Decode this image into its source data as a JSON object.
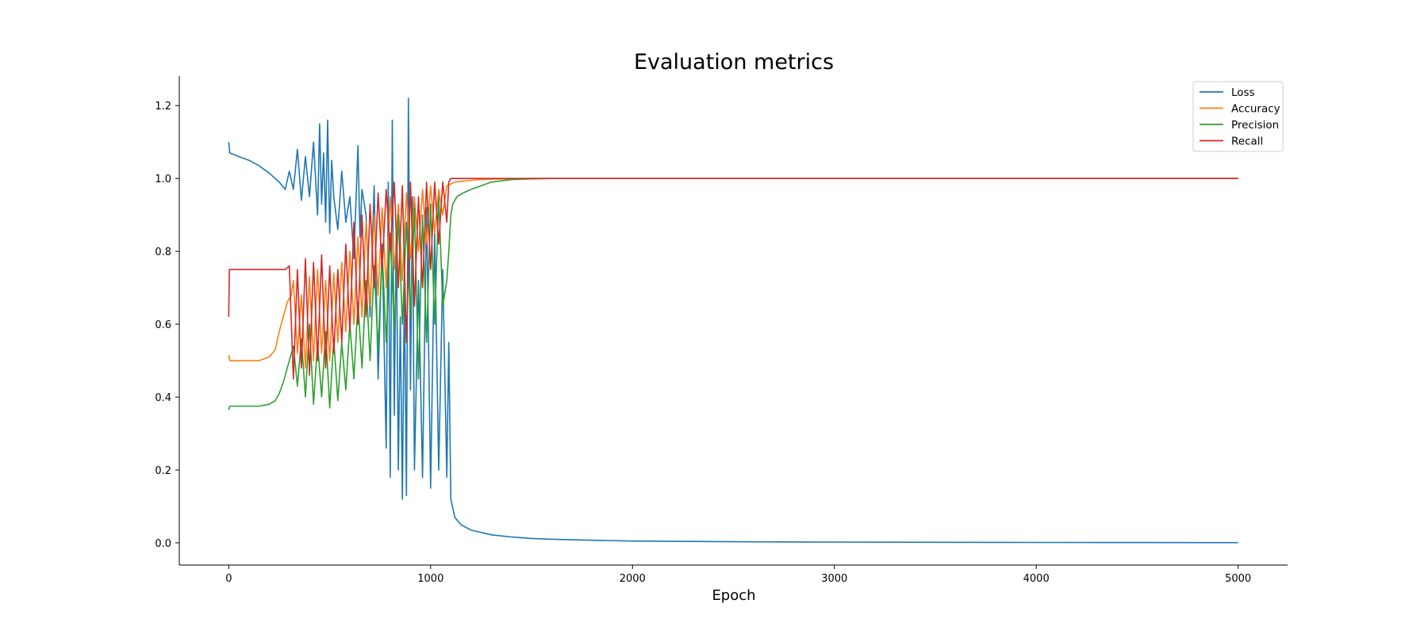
{
  "chart_data": {
    "type": "line",
    "title": "Evaluation metrics",
    "xlabel": "Epoch",
    "ylabel": "",
    "xlim": [
      -245,
      5245
    ],
    "ylim": [
      -0.061,
      1.281
    ],
    "xticks": [
      0,
      1000,
      2000,
      3000,
      4000,
      5000
    ],
    "xtick_labels": [
      "0",
      "1000",
      "2000",
      "3000",
      "4000",
      "5000"
    ],
    "yticks": [
      0.0,
      0.2,
      0.4,
      0.6,
      0.8,
      1.0,
      1.2
    ],
    "ytick_labels": [
      "0.0",
      "0.2",
      "0.4",
      "0.6",
      "0.8",
      "1.0",
      "1.2"
    ],
    "grid": false,
    "legend_position": "top-right",
    "series": [
      {
        "name": "Loss",
        "color": "#1f77b4",
        "x": [
          0,
          5,
          50,
          100,
          150,
          200,
          250,
          280,
          300,
          320,
          340,
          360,
          380,
          400,
          420,
          440,
          450,
          460,
          470,
          480,
          490,
          500,
          510,
          520,
          540,
          560,
          580,
          600,
          620,
          640,
          650,
          660,
          680,
          700,
          720,
          740,
          760,
          780,
          790,
          800,
          810,
          820,
          830,
          840,
          850,
          860,
          870,
          880,
          890,
          900,
          910,
          920,
          940,
          960,
          980,
          1000,
          1020,
          1040,
          1060,
          1080,
          1090,
          1100,
          1120,
          1150,
          1200,
          1300,
          1400,
          1500,
          1600,
          1800,
          2000,
          2500,
          3000,
          3500,
          4000,
          4500,
          5000
        ],
        "values": [
          1.1,
          1.07,
          1.06,
          1.05,
          1.035,
          1.015,
          0.99,
          0.97,
          1.02,
          0.97,
          1.08,
          0.94,
          1.06,
          0.95,
          1.1,
          0.9,
          1.15,
          0.93,
          1.07,
          0.88,
          1.16,
          0.85,
          1.05,
          0.95,
          0.86,
          1.02,
          0.88,
          0.95,
          0.78,
          1.09,
          0.84,
          0.97,
          0.9,
          0.62,
          0.98,
          0.45,
          0.82,
          0.26,
          0.99,
          0.18,
          1.16,
          0.35,
          0.88,
          0.2,
          0.62,
          0.12,
          0.7,
          0.13,
          1.22,
          0.42,
          0.95,
          0.2,
          0.72,
          0.18,
          0.92,
          0.15,
          0.85,
          0.2,
          0.75,
          0.18,
          0.55,
          0.12,
          0.07,
          0.05,
          0.035,
          0.022,
          0.016,
          0.012,
          0.01,
          0.007,
          0.005,
          0.003,
          0.002,
          0.0015,
          0.001,
          0.0008,
          0.0005
        ]
      },
      {
        "name": "Accuracy",
        "color": "#ff7f0e",
        "x": [
          0,
          5,
          50,
          100,
          150,
          200,
          230,
          250,
          270,
          290,
          310,
          320,
          340,
          360,
          380,
          400,
          420,
          440,
          460,
          480,
          500,
          520,
          540,
          560,
          580,
          600,
          620,
          640,
          660,
          680,
          700,
          720,
          740,
          760,
          780,
          800,
          820,
          840,
          860,
          880,
          900,
          920,
          940,
          960,
          980,
          1000,
          1020,
          1040,
          1060,
          1080,
          1100,
          1120,
          1150,
          1200,
          1250,
          1300,
          1400,
          1500,
          1600,
          1700,
          2000,
          3000,
          4000,
          5000
        ],
        "values": [
          0.515,
          0.5,
          0.5,
          0.5,
          0.5,
          0.51,
          0.53,
          0.58,
          0.62,
          0.66,
          0.68,
          0.72,
          0.52,
          0.68,
          0.48,
          0.73,
          0.5,
          0.75,
          0.52,
          0.72,
          0.5,
          0.74,
          0.55,
          0.77,
          0.58,
          0.8,
          0.6,
          0.84,
          0.62,
          0.88,
          0.65,
          0.9,
          0.68,
          0.92,
          0.7,
          0.95,
          0.75,
          0.93,
          0.72,
          0.96,
          0.78,
          0.95,
          0.8,
          0.97,
          0.82,
          0.98,
          0.85,
          0.97,
          0.9,
          0.98,
          0.985,
          0.99,
          0.992,
          0.995,
          0.997,
          0.998,
          0.999,
          1.0,
          1.0,
          1.0,
          1.0,
          1.0,
          1.0,
          1.0
        ]
      },
      {
        "name": "Precision",
        "color": "#2ca02c",
        "x": [
          0,
          5,
          50,
          100,
          150,
          200,
          230,
          250,
          270,
          290,
          300,
          320,
          340,
          360,
          380,
          400,
          420,
          440,
          460,
          480,
          500,
          520,
          540,
          560,
          580,
          600,
          620,
          640,
          660,
          680,
          700,
          720,
          740,
          760,
          780,
          800,
          820,
          840,
          860,
          880,
          900,
          920,
          940,
          960,
          980,
          1000,
          1020,
          1040,
          1060,
          1080,
          1090,
          1100,
          1110,
          1130,
          1160,
          1200,
          1250,
          1300,
          1400,
          1500,
          1600,
          2000,
          3000,
          4000,
          5000
        ],
        "values": [
          0.365,
          0.375,
          0.375,
          0.375,
          0.375,
          0.38,
          0.39,
          0.41,
          0.44,
          0.48,
          0.5,
          0.54,
          0.43,
          0.56,
          0.4,
          0.6,
          0.38,
          0.55,
          0.4,
          0.58,
          0.37,
          0.56,
          0.39,
          0.55,
          0.42,
          0.6,
          0.45,
          0.66,
          0.48,
          0.72,
          0.5,
          0.76,
          0.53,
          0.8,
          0.55,
          0.85,
          0.58,
          0.9,
          0.6,
          0.88,
          0.62,
          0.92,
          0.45,
          0.9,
          0.55,
          0.93,
          0.6,
          0.95,
          0.65,
          0.72,
          0.8,
          0.9,
          0.93,
          0.95,
          0.96,
          0.97,
          0.98,
          0.99,
          0.997,
          0.999,
          1.0,
          1.0,
          1.0,
          1.0,
          1.0
        ]
      },
      {
        "name": "Recall",
        "color": "#d62728",
        "x": [
          0,
          3,
          8,
          50,
          100,
          150,
          200,
          250,
          280,
          300,
          320,
          340,
          360,
          380,
          400,
          420,
          440,
          460,
          480,
          500,
          520,
          540,
          560,
          580,
          600,
          620,
          640,
          660,
          680,
          700,
          720,
          740,
          760,
          780,
          800,
          820,
          840,
          860,
          880,
          900,
          920,
          940,
          960,
          980,
          1000,
          1020,
          1040,
          1060,
          1080,
          1090,
          1100,
          1110,
          1200,
          1500,
          2000,
          3000,
          4000,
          5000
        ],
        "values": [
          0.62,
          0.75,
          0.75,
          0.75,
          0.75,
          0.75,
          0.75,
          0.75,
          0.75,
          0.76,
          0.45,
          0.75,
          0.48,
          0.78,
          0.46,
          0.77,
          0.5,
          0.79,
          0.48,
          0.76,
          0.52,
          0.75,
          0.55,
          0.82,
          0.58,
          0.88,
          0.6,
          0.9,
          0.62,
          0.93,
          0.7,
          0.96,
          0.75,
          0.97,
          0.8,
          0.99,
          0.7,
          0.98,
          0.55,
          0.99,
          0.65,
          0.95,
          0.7,
          0.99,
          0.75,
          0.99,
          0.82,
          0.99,
          0.88,
          0.99,
          1.0,
          1.0,
          1.0,
          1.0,
          1.0,
          1.0,
          1.0,
          1.0
        ]
      }
    ]
  }
}
